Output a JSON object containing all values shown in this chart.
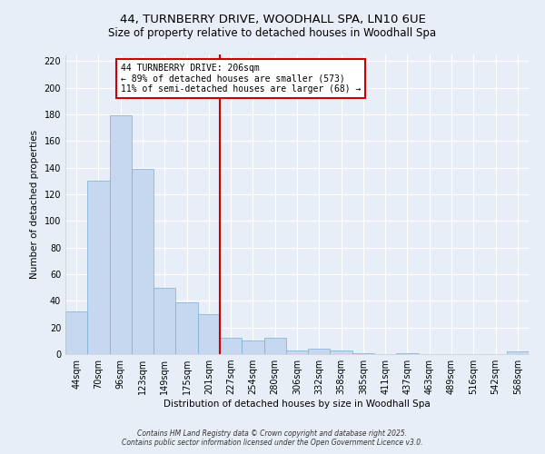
{
  "title": "44, TURNBERRY DRIVE, WOODHALL SPA, LN10 6UE",
  "subtitle": "Size of property relative to detached houses in Woodhall Spa",
  "xlabel": "Distribution of detached houses by size in Woodhall Spa",
  "ylabel": "Number of detached properties",
  "bin_labels": [
    "44sqm",
    "70sqm",
    "96sqm",
    "123sqm",
    "149sqm",
    "175sqm",
    "201sqm",
    "227sqm",
    "254sqm",
    "280sqm",
    "306sqm",
    "332sqm",
    "358sqm",
    "385sqm",
    "411sqm",
    "437sqm",
    "463sqm",
    "489sqm",
    "516sqm",
    "542sqm",
    "568sqm"
  ],
  "bar_heights": [
    32,
    130,
    179,
    139,
    50,
    39,
    30,
    12,
    10,
    12,
    3,
    4,
    3,
    1,
    0,
    1,
    0,
    0,
    0,
    0,
    2
  ],
  "bar_color": "#c5d8f0",
  "bar_edge_color": "#7aafd4",
  "vline_x_idx": 6,
  "vline_color": "#cc0000",
  "annotation_line1": "44 TURNBERRY DRIVE: 206sqm",
  "annotation_line2": "← 89% of detached houses are smaller (573)",
  "annotation_line3": "11% of semi-detached houses are larger (68) →",
  "annotation_box_color": "#ffffff",
  "annotation_box_edge": "#cc0000",
  "ylim": [
    0,
    225
  ],
  "yticks": [
    0,
    20,
    40,
    60,
    80,
    100,
    120,
    140,
    160,
    180,
    200,
    220
  ],
  "footer1": "Contains HM Land Registry data © Crown copyright and database right 2025.",
  "footer2": "Contains public sector information licensed under the Open Government Licence v3.0.",
  "background_color": "#e8eef8",
  "grid_color": "#ffffff",
  "title_fontsize": 9.5,
  "subtitle_fontsize": 8.5,
  "axis_label_fontsize": 7.5,
  "tick_fontsize": 7,
  "footer_fontsize": 5.5
}
